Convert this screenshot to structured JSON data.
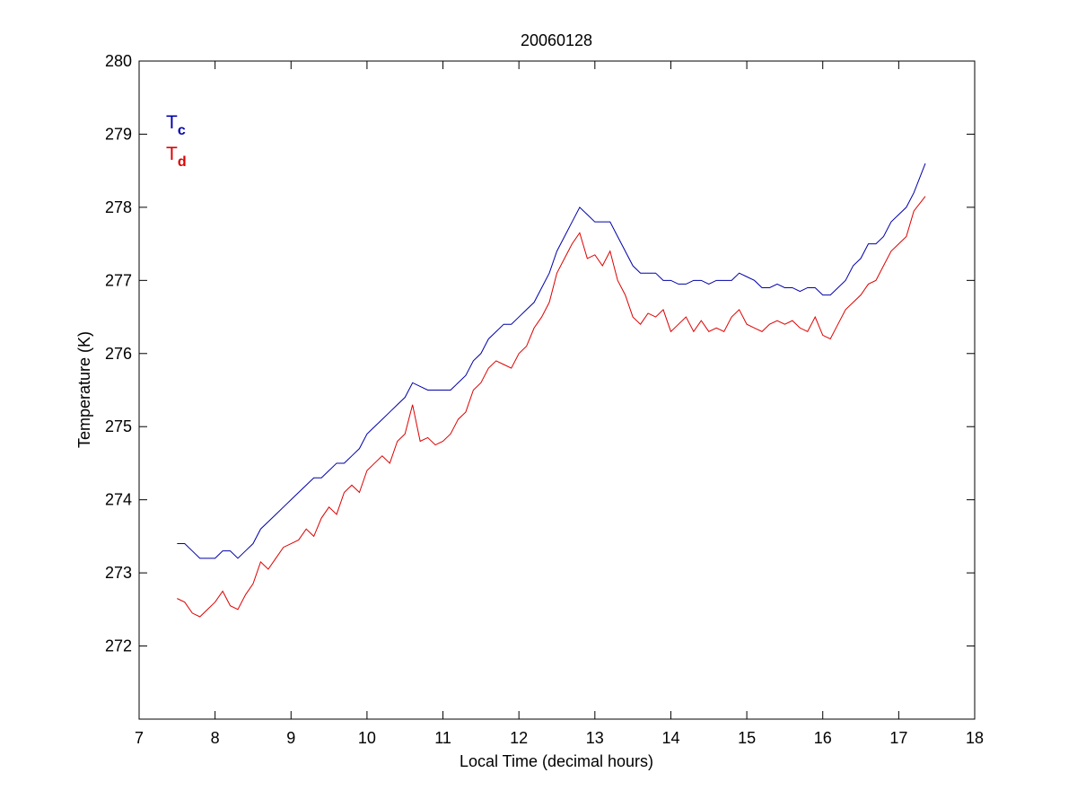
{
  "chart_data": {
    "type": "line",
    "title": "20060128",
    "xlabel": "Local Time (decimal hours)",
    "ylabel": "Temperature (K)",
    "x": [
      7.5,
      7.6,
      7.7,
      7.8,
      7.9,
      8.0,
      8.1,
      8.2,
      8.3,
      8.4,
      8.5,
      8.6,
      8.7,
      8.8,
      8.9,
      9.0,
      9.1,
      9.2,
      9.3,
      9.4,
      9.5,
      9.6,
      9.7,
      9.8,
      9.9,
      10.0,
      10.1,
      10.2,
      10.3,
      10.4,
      10.5,
      10.6,
      10.7,
      10.8,
      10.9,
      11.0,
      11.1,
      11.2,
      11.3,
      11.4,
      11.5,
      11.6,
      11.7,
      11.8,
      11.9,
      12.0,
      12.1,
      12.2,
      12.3,
      12.4,
      12.5,
      12.6,
      12.7,
      12.8,
      12.9,
      13.0,
      13.1,
      13.2,
      13.3,
      13.4,
      13.5,
      13.6,
      13.7,
      13.8,
      13.9,
      14.0,
      14.1,
      14.2,
      14.3,
      14.4,
      14.5,
      14.6,
      14.7,
      14.8,
      14.9,
      15.0,
      15.1,
      15.2,
      15.3,
      15.4,
      15.5,
      15.6,
      15.7,
      15.8,
      15.9,
      16.0,
      16.1,
      16.2,
      16.3,
      16.4,
      16.5,
      16.6,
      16.7,
      16.8,
      16.9,
      17.0,
      17.1,
      17.2,
      17.35
    ],
    "series": [
      {
        "name": "T",
        "subscript": "c",
        "color": "#0000aa",
        "values": [
          273.4,
          273.4,
          273.3,
          273.2,
          273.2,
          273.2,
          273.3,
          273.3,
          273.2,
          273.3,
          273.4,
          273.6,
          273.7,
          273.8,
          273.9,
          274.0,
          274.1,
          274.2,
          274.3,
          274.3,
          274.4,
          274.5,
          274.5,
          274.6,
          274.7,
          274.9,
          275.0,
          275.1,
          275.2,
          275.3,
          275.4,
          275.6,
          275.55,
          275.5,
          275.5,
          275.5,
          275.5,
          275.6,
          275.7,
          275.9,
          276.0,
          276.2,
          276.3,
          276.4,
          276.4,
          276.5,
          276.6,
          276.7,
          276.9,
          277.1,
          277.4,
          277.6,
          277.8,
          278.0,
          277.9,
          277.8,
          277.8,
          277.8,
          277.6,
          277.4,
          277.2,
          277.1,
          277.1,
          277.1,
          277.0,
          277.0,
          276.95,
          276.95,
          277.0,
          277.0,
          276.95,
          277.0,
          277.0,
          277.0,
          277.1,
          277.05,
          277.0,
          276.9,
          276.9,
          276.95,
          276.9,
          276.9,
          276.85,
          276.9,
          276.9,
          276.8,
          276.8,
          276.9,
          277.0,
          277.2,
          277.3,
          277.5,
          277.5,
          277.6,
          277.8,
          277.9,
          278.0,
          278.2,
          278.6
        ]
      },
      {
        "name": "T",
        "subscript": "d",
        "color": "#dd0000",
        "values": [
          272.65,
          272.6,
          272.45,
          272.4,
          272.5,
          272.6,
          272.75,
          272.55,
          272.5,
          272.7,
          272.85,
          273.15,
          273.05,
          273.2,
          273.35,
          273.4,
          273.45,
          273.6,
          273.5,
          273.75,
          273.9,
          273.8,
          274.1,
          274.2,
          274.1,
          274.4,
          274.5,
          274.6,
          274.5,
          274.8,
          274.9,
          275.3,
          274.8,
          274.85,
          274.75,
          274.8,
          274.9,
          275.1,
          275.2,
          275.5,
          275.6,
          275.8,
          275.9,
          275.85,
          275.8,
          276.0,
          276.1,
          276.35,
          276.5,
          276.7,
          277.1,
          277.3,
          277.5,
          277.65,
          277.3,
          277.35,
          277.2,
          277.4,
          277.0,
          276.8,
          276.5,
          276.4,
          276.55,
          276.5,
          276.6,
          276.3,
          276.4,
          276.5,
          276.3,
          276.45,
          276.3,
          276.35,
          276.3,
          276.5,
          276.6,
          276.4,
          276.35,
          276.3,
          276.4,
          276.45,
          276.4,
          276.45,
          276.35,
          276.3,
          276.5,
          276.25,
          276.2,
          276.4,
          276.6,
          276.7,
          276.8,
          276.95,
          277.0,
          277.2,
          277.4,
          277.5,
          277.6,
          277.95,
          278.15
        ]
      }
    ],
    "xlim": [
      7,
      18
    ],
    "xticks": [
      7,
      8,
      9,
      10,
      11,
      12,
      13,
      14,
      15,
      16,
      17,
      18
    ],
    "ylim": [
      271,
      280
    ],
    "yticks": [
      272,
      273,
      274,
      275,
      276,
      277,
      278,
      279,
      280
    ],
    "legend": "upper left",
    "grid": false
  }
}
